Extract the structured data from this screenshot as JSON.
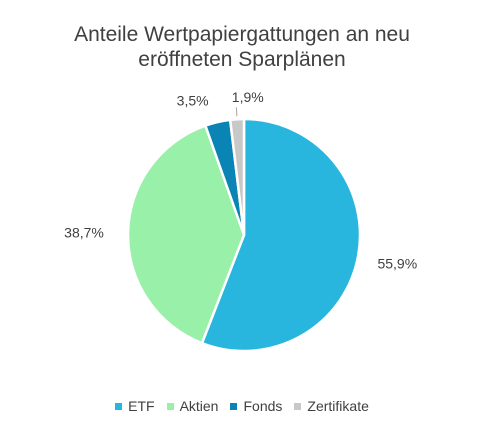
{
  "chart_data": {
    "type": "pie",
    "title_lines": [
      "Anteile Wertpapiergattungen an neu",
      "eröffneten Sparplänen"
    ],
    "slices": [
      {
        "name": "ETF",
        "value": 55.9,
        "label": "55,9%",
        "color": "#29b6de"
      },
      {
        "name": "Aktien",
        "value": 38.7,
        "label": "38,7%",
        "color": "#99f0a8"
      },
      {
        "name": "Fonds",
        "value": 3.5,
        "label": "3,5%",
        "color": "#0a83b5"
      },
      {
        "name": "Zertifikate",
        "value": 1.9,
        "label": "1,9%",
        "color": "#c8c8c8"
      }
    ],
    "legend_position": "bottom",
    "start_angle": "12 o'clock",
    "direction": "clockwise"
  }
}
